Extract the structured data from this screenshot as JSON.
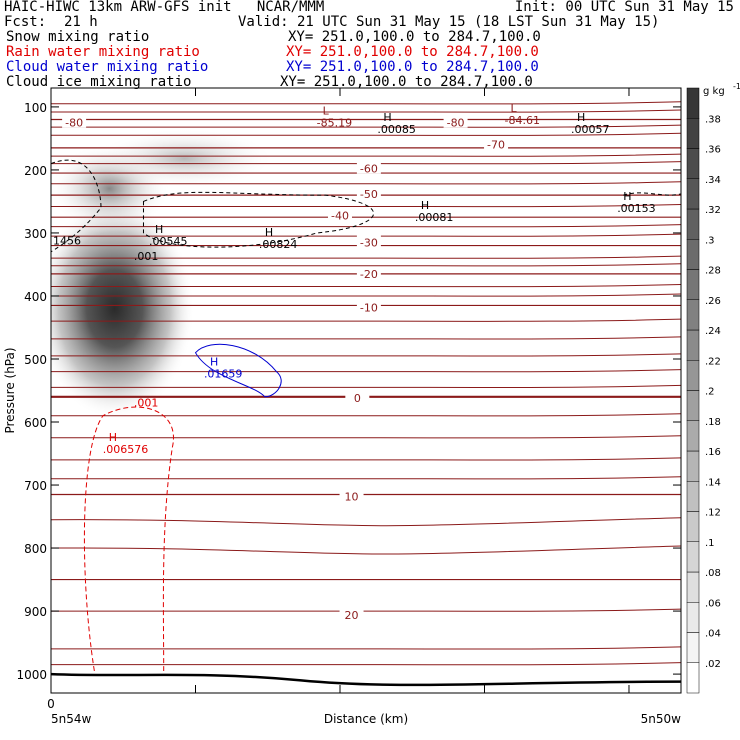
{
  "header": {
    "title_left": "HAIC-HIWC 13km ARW-GFS init   NCAR/MMM",
    "init": "Init: 00 UTC Sun 31 May 15",
    "fcst_label": "Fcst:",
    "fcst_value": "21 h",
    "valid": "Valid: 21 UTC Sun 31 May 15 (18 LST Sun 31 May 15)"
  },
  "fields": [
    {
      "name": "Snow mixing ratio",
      "xy": "XY= 251.0,100.0 to 284.7,100.0",
      "color": "#000000"
    },
    {
      "name": "Rain water mixing ratio",
      "xy": "XY= 251.0,100.0 to 284.7,100.0",
      "color": "#e00000"
    },
    {
      "name": "Cloud water mixing ratio",
      "xy": "XY= 251.0,100.0 to 284.7,100.0",
      "color": "#0000d0"
    },
    {
      "name": "Cloud ice mixing ratio",
      "xy": "XY= 251.0,100.0 to 284.7,100.0",
      "color": "#000000"
    }
  ],
  "chart_data": {
    "type": "contour",
    "ylabel": "Pressure (hPa)",
    "xlabel": "Distance (km)",
    "y_ticks": [
      100,
      200,
      300,
      400,
      500,
      600,
      700,
      800,
      900,
      1000
    ],
    "ylim": [
      1030,
      70
    ],
    "xlim": [
      0,
      218
    ],
    "x_tick_values": [
      0,
      50,
      100,
      150,
      200
    ],
    "x_tick_labels": [
      "0",
      "",
      "",
      "",
      ""
    ],
    "x_left_label": "5n54w",
    "x_right_label": "5n50w",
    "colorbar": {
      "unit": "g kg",
      "unit_exp": "-1",
      "ticks": [
        ".02",
        ".04",
        ".06",
        ".08",
        ".1",
        ".12",
        ".14",
        ".16",
        ".18",
        ".2",
        ".22",
        ".24",
        ".26",
        ".28",
        ".3",
        ".32",
        ".34",
        ".36",
        ".38"
      ],
      "range": [
        0,
        0.4
      ]
    },
    "temperature_contours": {
      "color": "#8b1a1a",
      "levels": [
        {
          "p": 120,
          "label": "-80"
        },
        {
          "p": 165,
          "label": "-70"
        },
        {
          "p": 205,
          "label": "-60"
        },
        {
          "p": 240,
          "label": "-50"
        },
        {
          "p": 275,
          "label": "-40"
        },
        {
          "p": 320,
          "label": "-30"
        },
        {
          "p": 365,
          "label": "-20"
        },
        {
          "p": 415,
          "label": "-10"
        },
        {
          "p": 560,
          "label": "0"
        },
        {
          "p": 715,
          "label": "10"
        },
        {
          "p": 850,
          "label": "20"
        }
      ],
      "label_positions": [
        {
          "text": "-80",
          "x": 8,
          "p": 125
        },
        {
          "text": "-80",
          "x": 140,
          "p": 125
        },
        {
          "text": "-70",
          "x": 154,
          "p": 160
        },
        {
          "text": "-60",
          "x": 110,
          "p": 198
        },
        {
          "text": "-50",
          "x": 110,
          "p": 238
        },
        {
          "text": "-40",
          "x": 100,
          "p": 272
        },
        {
          "text": "-30",
          "x": 110,
          "p": 315
        },
        {
          "text": "-20",
          "x": 110,
          "p": 365
        },
        {
          "text": "-10",
          "x": 110,
          "p": 418
        },
        {
          "text": "0",
          "x": 106,
          "p": 562
        },
        {
          "text": "10",
          "x": 104,
          "p": 718
        },
        {
          "text": "20",
          "x": 104,
          "p": 906
        }
      ]
    },
    "extrema_labels": [
      {
        "kind": "L",
        "value": "-85.19",
        "x": 94,
        "p": 112,
        "color": "#8b1a1a"
      },
      {
        "kind": "L",
        "value": "-84.61",
        "x": 159,
        "p": 108,
        "color": "#8b1a1a"
      },
      {
        "kind": "H",
        "value": ".00085",
        "x": 115,
        "p": 122,
        "color": "#000000"
      },
      {
        "kind": "H",
        "value": ".00057",
        "x": 182,
        "p": 122,
        "color": "#000000"
      },
      {
        "kind": "H",
        "value": ".00081",
        "x": 128,
        "p": 262,
        "color": "#000000"
      },
      {
        "kind": "H",
        "value": ".00153",
        "x": 198,
        "p": 248,
        "color": "#000000"
      },
      {
        "kind": "H",
        "value": ".00545",
        "x": 36,
        "p": 300,
        "color": "#000000"
      },
      {
        "kind": "H",
        "value": ".00824",
        "x": 74,
        "p": 305,
        "color": "#000000"
      },
      {
        "kind": "H",
        "value": ".01659",
        "x": 55,
        "p": 510,
        "color": "#0000d0"
      },
      {
        "kind": "H",
        "value": ".006576",
        "x": 20,
        "p": 630,
        "color": "#e00000"
      }
    ],
    "contour_labels": [
      {
        "text": "1456",
        "x": 0,
        "p": 318,
        "color": "#000000"
      },
      {
        "text": ".001",
        "x": 28,
        "p": 343,
        "color": "#000000"
      },
      {
        "text": ".001",
        "x": 28,
        "p": 575,
        "color": "#e00000"
      }
    ],
    "snow_max_gkg": 0.3,
    "snow_max_location": {
      "x": 22,
      "p": 420
    }
  }
}
